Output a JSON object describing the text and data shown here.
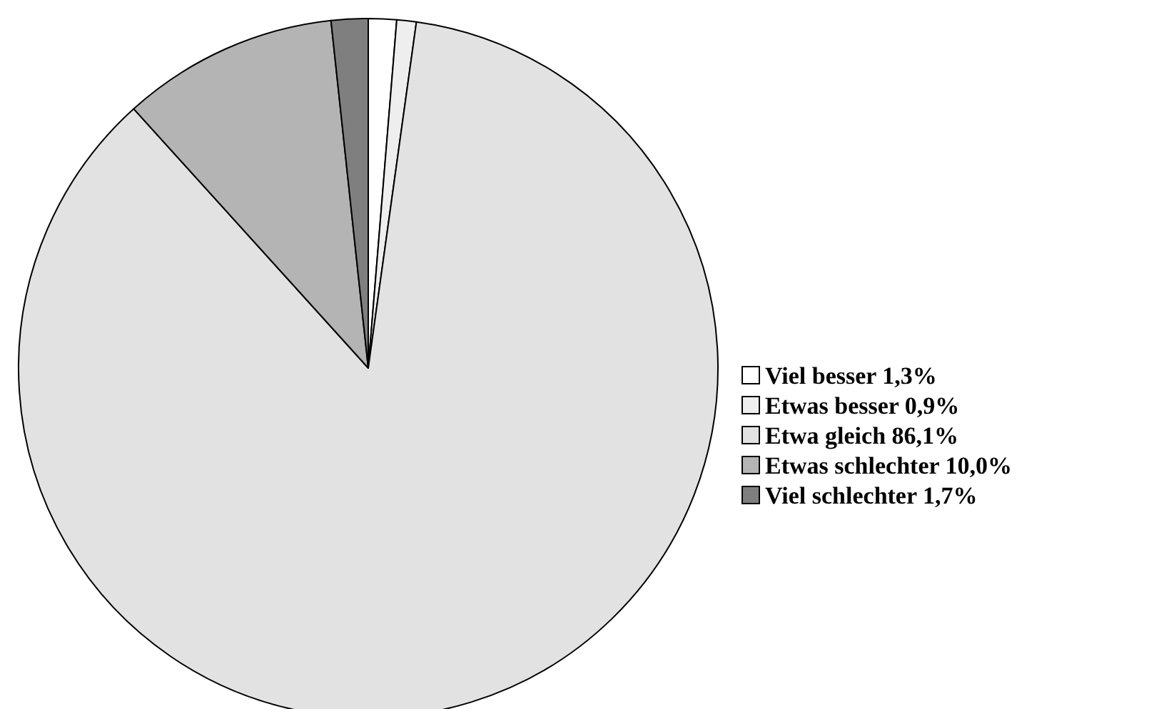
{
  "chart_data": {
    "type": "pie",
    "categories": [
      "Viel besser",
      "Etwas besser",
      "Etwa gleich",
      "Etwas schlechter",
      "Viel schlechter"
    ],
    "values": [
      1.3,
      0.9,
      86.1,
      10.0,
      1.7
    ],
    "value_labels": [
      "1,3%",
      "0,9%",
      "86,1%",
      "10,0%",
      "1,7%"
    ],
    "colors": [
      "#ffffff",
      "#eeeeee",
      "#e2e2e2",
      "#b4b4b4",
      "#7f7f7f"
    ],
    "legend": "right"
  }
}
